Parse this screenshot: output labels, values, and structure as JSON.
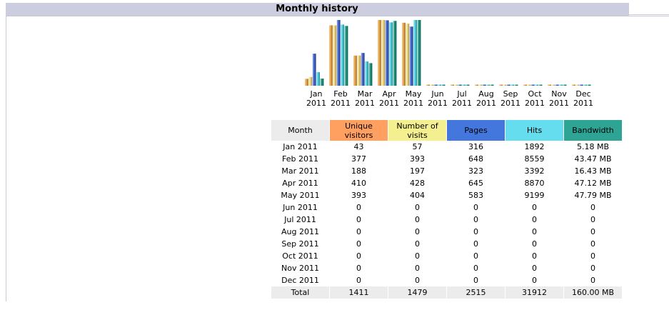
{
  "title": "Monthly history",
  "chart_data": {
    "type": "bar",
    "categories": [
      "Jan 2011",
      "Feb 2011",
      "Mar 2011",
      "Apr 2011",
      "May 2011",
      "Jun 2011",
      "Jul 2011",
      "Aug 2011",
      "Sep 2011",
      "Oct 2011",
      "Nov 2011",
      "Dec 2011"
    ],
    "month_labels": [
      {
        "month": "Jan",
        "year": "2011"
      },
      {
        "month": "Feb",
        "year": "2011"
      },
      {
        "month": "Mar",
        "year": "2011"
      },
      {
        "month": "Apr",
        "year": "2011"
      },
      {
        "month": "May",
        "year": "2011"
      },
      {
        "month": "Jun",
        "year": "2011"
      },
      {
        "month": "Jul",
        "year": "2011"
      },
      {
        "month": "Aug",
        "year": "2011"
      },
      {
        "month": "Sep",
        "year": "2011"
      },
      {
        "month": "Oct",
        "year": "2011"
      },
      {
        "month": "Nov",
        "year": "2011"
      },
      {
        "month": "Dec",
        "year": "2011"
      }
    ],
    "series": [
      {
        "name": "Unique visitors",
        "color": "#e8a040",
        "values": [
          43,
          377,
          188,
          410,
          393,
          0,
          0,
          0,
          0,
          0,
          0,
          0
        ]
      },
      {
        "name": "Number of visits",
        "color": "#f0d878",
        "values": [
          57,
          393,
          197,
          428,
          404,
          0,
          0,
          0,
          0,
          0,
          0,
          0
        ]
      },
      {
        "name": "Pages",
        "color": "#3b5fc8",
        "values": [
          316,
          648,
          323,
          645,
          583,
          0,
          0,
          0,
          0,
          0,
          0,
          0
        ]
      },
      {
        "name": "Hits",
        "color": "#48d0e0",
        "values": [
          1892,
          8559,
          3392,
          8870,
          9199,
          0,
          0,
          0,
          0,
          0,
          0,
          0
        ]
      },
      {
        "name": "Bandwidth",
        "color": "#17917c",
        "values": [
          5.18,
          43.47,
          16.43,
          47.12,
          47.79,
          0,
          0,
          0,
          0,
          0,
          0,
          0
        ]
      }
    ],
    "legend": "table below chart",
    "grid": false
  },
  "table": {
    "headers": {
      "month": "Month",
      "visitors": [
        "Unique",
        "visitors"
      ],
      "visits": [
        "Number of",
        "visits"
      ],
      "pages": "Pages",
      "hits": "Hits",
      "bandwidth": "Bandwidth"
    },
    "rows": [
      [
        "Jan 2011",
        "43",
        "57",
        "316",
        "1892",
        "5.18 MB"
      ],
      [
        "Feb 2011",
        "377",
        "393",
        "648",
        "8559",
        "43.47 MB"
      ],
      [
        "Mar 2011",
        "188",
        "197",
        "323",
        "3392",
        "16.43 MB"
      ],
      [
        "Apr 2011",
        "410",
        "428",
        "645",
        "8870",
        "47.12 MB"
      ],
      [
        "May 2011",
        "393",
        "404",
        "583",
        "9199",
        "47.79 MB"
      ],
      [
        "Jun 2011",
        "0",
        "0",
        "0",
        "0",
        "0"
      ],
      [
        "Jul 2011",
        "0",
        "0",
        "0",
        "0",
        "0"
      ],
      [
        "Aug 2011",
        "0",
        "0",
        "0",
        "0",
        "0"
      ],
      [
        "Sep 2011",
        "0",
        "0",
        "0",
        "0",
        "0"
      ],
      [
        "Oct 2011",
        "0",
        "0",
        "0",
        "0",
        "0"
      ],
      [
        "Nov 2011",
        "0",
        "0",
        "0",
        "0",
        "0"
      ],
      [
        "Dec 2011",
        "0",
        "0",
        "0",
        "0",
        "0"
      ]
    ],
    "total": [
      "Total",
      "1411",
      "1479",
      "2515",
      "31912",
      "160.00 MB"
    ]
  }
}
